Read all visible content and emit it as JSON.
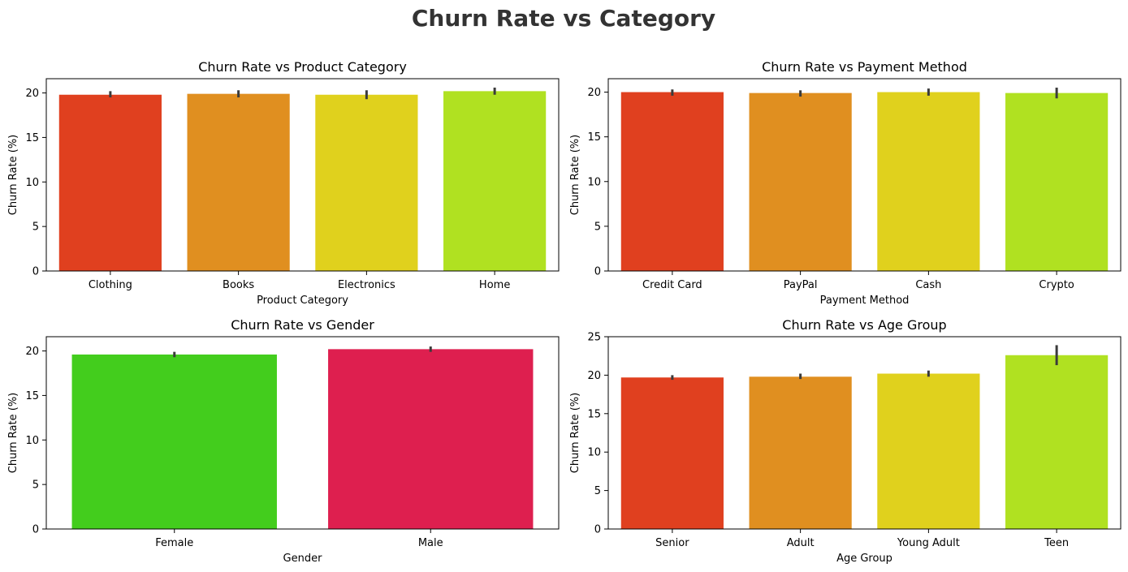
{
  "suptitle": "Churn Rate vs Category",
  "chart_data": [
    {
      "type": "bar",
      "title": "Churn Rate vs Product Category",
      "xlabel": "Product Category",
      "ylabel": "Churn Rate (%)",
      "categories": [
        "Clothing",
        "Books",
        "Electronics",
        "Home"
      ],
      "values": [
        19.8,
        19.9,
        19.8,
        20.2
      ],
      "error": [
        [
          19.5,
          20.2
        ],
        [
          19.5,
          20.3
        ],
        [
          19.3,
          20.3
        ],
        [
          19.8,
          20.6
        ]
      ],
      "colors": [
        "#e0401f",
        "#e08f20",
        "#e0d11d",
        "#b0e121"
      ],
      "ylim": [
        0,
        21.6
      ],
      "yticks": [
        0,
        5,
        10,
        15,
        20
      ],
      "grid": false,
      "legend": "none"
    },
    {
      "type": "bar",
      "title": "Churn Rate vs Payment Method",
      "xlabel": "Payment Method",
      "ylabel": "Churn Rate (%)",
      "categories": [
        "Credit Card",
        "PayPal",
        "Cash",
        "Crypto"
      ],
      "values": [
        20.0,
        19.9,
        20.0,
        19.9
      ],
      "error": [
        [
          19.6,
          20.3
        ],
        [
          19.5,
          20.2
        ],
        [
          19.6,
          20.4
        ],
        [
          19.3,
          20.5
        ]
      ],
      "colors": [
        "#e0401f",
        "#e08f20",
        "#e0d11d",
        "#b0e121"
      ],
      "ylim": [
        0,
        21.5
      ],
      "yticks": [
        0,
        5,
        10,
        15,
        20
      ],
      "grid": false,
      "legend": "none"
    },
    {
      "type": "bar",
      "title": "Churn Rate vs Gender",
      "xlabel": "Gender",
      "ylabel": "Churn Rate (%)",
      "categories": [
        "Female",
        "Male"
      ],
      "values": [
        19.6,
        20.2
      ],
      "error": [
        [
          19.3,
          19.9
        ],
        [
          19.9,
          20.5
        ]
      ],
      "colors": [
        "#43cd1d",
        "#de1f4f"
      ],
      "ylim": [
        0,
        21.6
      ],
      "yticks": [
        0,
        5,
        10,
        15,
        20
      ],
      "grid": false,
      "legend": "none"
    },
    {
      "type": "bar",
      "title": "Churn Rate vs Age Group",
      "xlabel": "Age Group",
      "ylabel": "Churn Rate (%)",
      "categories": [
        "Senior",
        "Adult",
        "Young Adult",
        "Teen"
      ],
      "values": [
        19.7,
        19.8,
        20.2,
        22.6
      ],
      "error": [
        [
          19.4,
          20.0
        ],
        [
          19.5,
          20.2
        ],
        [
          19.8,
          20.6
        ],
        [
          21.3,
          23.9
        ]
      ],
      "colors": [
        "#e0401f",
        "#e08f20",
        "#e0d11d",
        "#b0e121"
      ],
      "ylim": [
        0,
        25
      ],
      "yticks": [
        0,
        5,
        10,
        15,
        20,
        25
      ],
      "grid": false,
      "legend": "none"
    }
  ]
}
